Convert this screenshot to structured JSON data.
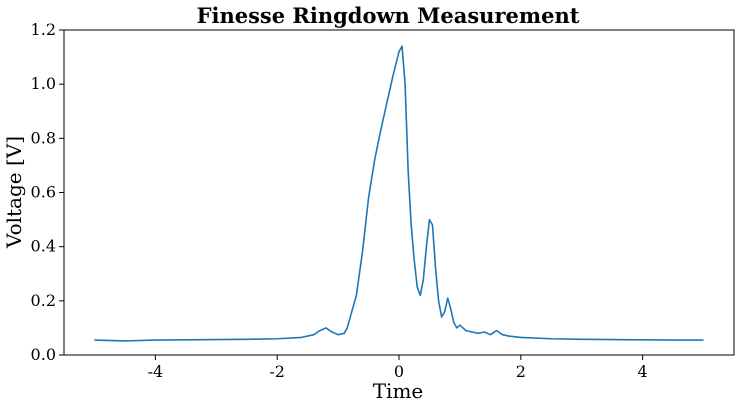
{
  "chart_data": {
    "type": "line",
    "title": "Finesse Ringdown Measurement",
    "xlabel": "Time",
    "ylabel": "Voltage [V]",
    "xlim": [
      -5.5,
      5.5
    ],
    "ylim": [
      0.0,
      1.2
    ],
    "xticks": [
      -4,
      -2,
      0,
      2,
      4
    ],
    "xtick_labels": [
      "-4",
      "-2",
      "0",
      "2",
      "4"
    ],
    "yticks": [
      0.0,
      0.2,
      0.4,
      0.6,
      0.8,
      1.0,
      1.2
    ],
    "ytick_labels": [
      "0.0",
      "0.2",
      "0.4",
      "0.6",
      "0.8",
      "1.0",
      "1.2"
    ],
    "grid": false,
    "series": [
      {
        "color": "#1f77b4",
        "x": [
          -5.0,
          -4.5,
          -4.0,
          -3.5,
          -3.0,
          -2.5,
          -2.0,
          -1.6,
          -1.4,
          -1.3,
          -1.2,
          -1.1,
          -1.0,
          -0.9,
          -0.85,
          -0.8,
          -0.7,
          -0.6,
          -0.5,
          -0.4,
          -0.3,
          -0.2,
          -0.1,
          0.0,
          0.05,
          0.1,
          0.15,
          0.2,
          0.25,
          0.3,
          0.35,
          0.4,
          0.45,
          0.5,
          0.55,
          0.6,
          0.65,
          0.7,
          0.75,
          0.8,
          0.85,
          0.9,
          0.95,
          1.0,
          1.1,
          1.2,
          1.3,
          1.4,
          1.5,
          1.6,
          1.7,
          1.8,
          2.0,
          2.5,
          3.0,
          3.5,
          4.0,
          4.5,
          5.0
        ],
        "y": [
          0.055,
          0.052,
          0.055,
          0.056,
          0.057,
          0.058,
          0.06,
          0.065,
          0.075,
          0.09,
          0.1,
          0.085,
          0.075,
          0.08,
          0.1,
          0.14,
          0.22,
          0.38,
          0.58,
          0.72,
          0.83,
          0.93,
          1.03,
          1.12,
          1.14,
          1.0,
          0.68,
          0.48,
          0.35,
          0.25,
          0.22,
          0.28,
          0.4,
          0.5,
          0.48,
          0.32,
          0.2,
          0.14,
          0.16,
          0.21,
          0.17,
          0.12,
          0.1,
          0.11,
          0.09,
          0.085,
          0.08,
          0.085,
          0.075,
          0.09,
          0.075,
          0.07,
          0.065,
          0.06,
          0.058,
          0.057,
          0.056,
          0.055,
          0.055
        ]
      }
    ]
  }
}
